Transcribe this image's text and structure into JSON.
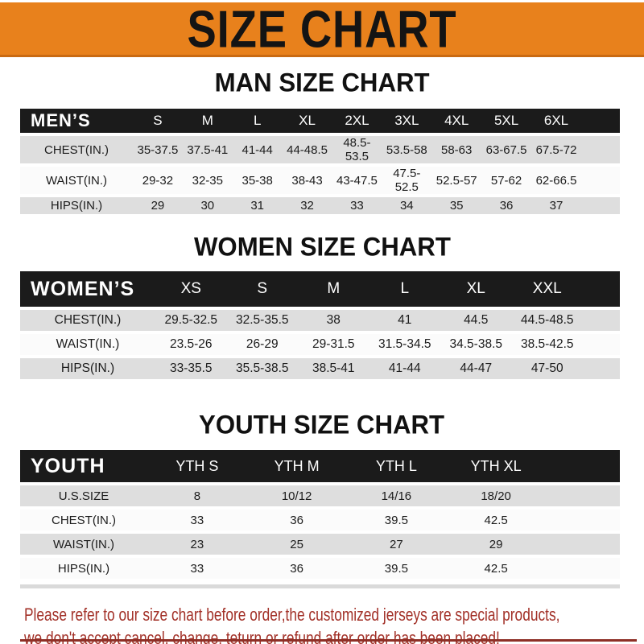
{
  "banner": {
    "title": "SIZE CHART"
  },
  "sections": [
    {
      "heading": "MAN SIZE CHART",
      "header_label": "MEN’S",
      "columns": [
        "S",
        "M",
        "L",
        "XL",
        "2XL",
        "3XL",
        "4XL",
        "5XL",
        "6XL"
      ],
      "rows": [
        {
          "label": "CHEST(IN.)",
          "values": [
            "35-37.5",
            "37.5-41",
            "41-44",
            "44-48.5",
            "48.5-53.5",
            "53.5-58",
            "58-63",
            "63-67.5",
            "67.5-72"
          ]
        },
        {
          "label": "WAIST(IN.)",
          "values": [
            "29-32",
            "32-35",
            "35-38",
            "38-43",
            "43-47.5",
            "47.5-52.5",
            "52.5-57",
            "57-62",
            "62-66.5"
          ]
        },
        {
          "label": "HIPS(IN.)",
          "values": [
            "29",
            "30",
            "31",
            "32",
            "33",
            "34",
            "35",
            "36",
            "37"
          ]
        }
      ]
    },
    {
      "heading": "WOMEN SIZE CHART",
      "header_label": "WOMEN’S",
      "columns": [
        "XS",
        "S",
        "M",
        "L",
        "XL",
        "XXL"
      ],
      "rows": [
        {
          "label": "CHEST(IN.)",
          "values": [
            "29.5-32.5",
            "32.5-35.5",
            "38",
            "41",
            "44.5",
            "44.5-48.5"
          ]
        },
        {
          "label": "WAIST(IN.)",
          "values": [
            "23.5-26",
            "26-29",
            "29-31.5",
            "31.5-34.5",
            "34.5-38.5",
            "38.5-42.5"
          ]
        },
        {
          "label": "HIPS(IN.)",
          "values": [
            "33-35.5",
            "35.5-38.5",
            "38.5-41",
            "41-44",
            "44-47",
            "47-50"
          ]
        }
      ]
    },
    {
      "heading": "YOUTH SIZE CHART",
      "header_label": "YOUTH",
      "columns": [
        "YTH S",
        "YTH M",
        "YTH L",
        "YTH XL"
      ],
      "rows": [
        {
          "label": "U.S.SIZE",
          "values": [
            "8",
            "10/12",
            "14/16",
            "18/20"
          ]
        },
        {
          "label": "CHEST(IN.)",
          "values": [
            "33",
            "36",
            "39.5",
            "42.5"
          ]
        },
        {
          "label": "WAIST(IN.)",
          "values": [
            "23",
            "25",
            "27",
            "29"
          ]
        },
        {
          "label": "HIPS(IN.)",
          "values": [
            "33",
            "36",
            "39.5",
            "42.5"
          ]
        }
      ]
    }
  ],
  "footer": {
    "line1": "Please refer to our size chart before order,the customized jerseys are special products,",
    "line2": "we don't accept cancel, change, teturn or refund after order has been placed!"
  },
  "colors": {
    "banner_bg": "#E8811C",
    "band_bg": "#1B1B1B",
    "stripe_gray": "#DEDEDE",
    "notice_red": "#A23027",
    "bottom_rule": "#8E2F26"
  }
}
